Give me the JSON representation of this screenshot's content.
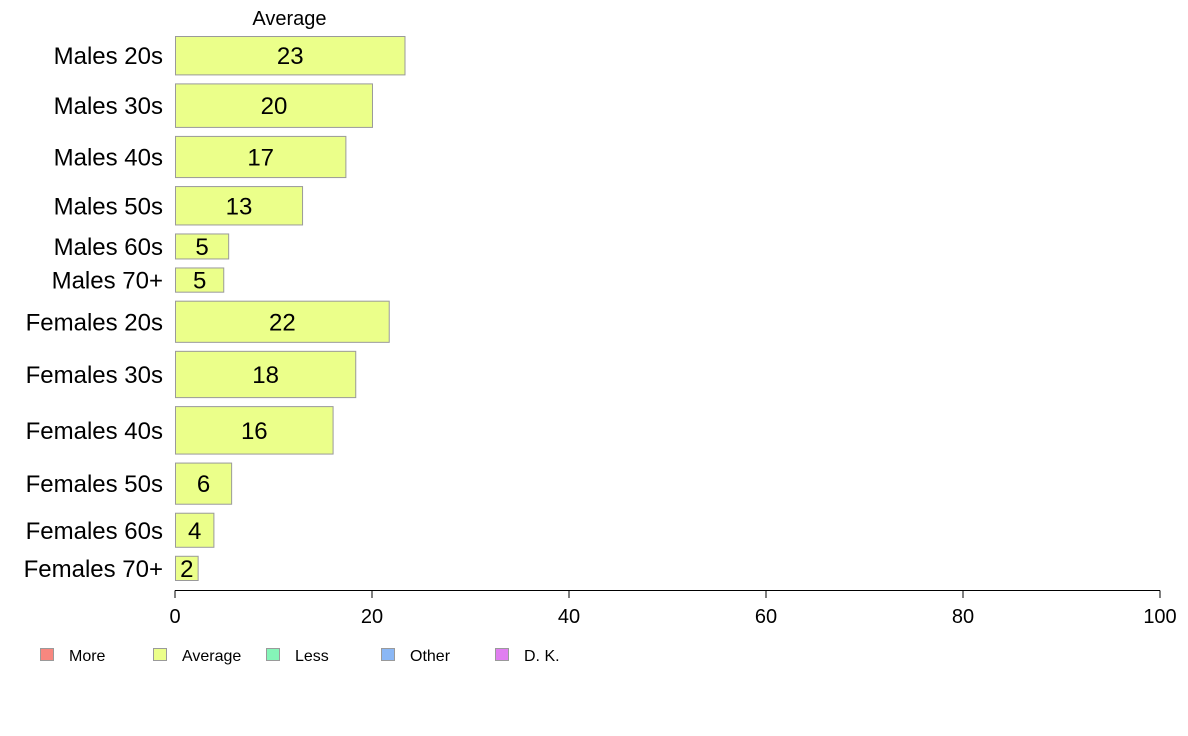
{
  "chart_data": {
    "type": "bar",
    "orientation": "horizontal",
    "stacked": true,
    "panel_header": "Average",
    "categories": [
      "Males 20s",
      "Males 30s",
      "Males 40s",
      "Males 50s",
      "Males 60s",
      "Males 70+",
      "Females 20s",
      "Females 30s",
      "Females 40s",
      "Females 50s",
      "Females 60s",
      "Females 70+"
    ],
    "series": [
      {
        "name": "More",
        "color": "#f8877f",
        "values": [
          0,
          0,
          0,
          0,
          0,
          0,
          0,
          0,
          0,
          0,
          0,
          0
        ]
      },
      {
        "name": "Average",
        "color": "#ebff8a",
        "values": [
          23.4,
          20.1,
          17.4,
          13.0,
          5.5,
          5.0,
          21.8,
          18.4,
          16.1,
          5.8,
          4.0,
          2.4
        ]
      },
      {
        "name": "Less",
        "color": "#85f5b8",
        "values": [
          0,
          0,
          0,
          0,
          0,
          0,
          0,
          0,
          0,
          0,
          0,
          0
        ]
      },
      {
        "name": "Other",
        "color": "#8ab7f5",
        "values": [
          0,
          0,
          0,
          0,
          0,
          0,
          0,
          0,
          0,
          0,
          0,
          0
        ]
      },
      {
        "name": "D. K.",
        "color": "#e07ef0",
        "values": [
          0,
          0,
          0,
          0,
          0,
          0,
          0,
          0,
          0,
          0,
          0,
          0
        ]
      }
    ],
    "data_labels": [
      "23",
      "20",
      "17",
      "13",
      "5",
      "5",
      "22",
      "18",
      "16",
      "6",
      "4",
      "2"
    ],
    "bar_weights": [
      1.0,
      1.13,
      1.07,
      1.0,
      0.66,
      0.64,
      1.07,
      1.2,
      1.23,
      1.07,
      0.89,
      0.64
    ],
    "xlim": [
      0,
      100
    ],
    "xticks": [
      0,
      20,
      40,
      60,
      80,
      100
    ],
    "grid": false,
    "legend_position": "bottom",
    "bar_stroke": "#9a9a9a"
  }
}
